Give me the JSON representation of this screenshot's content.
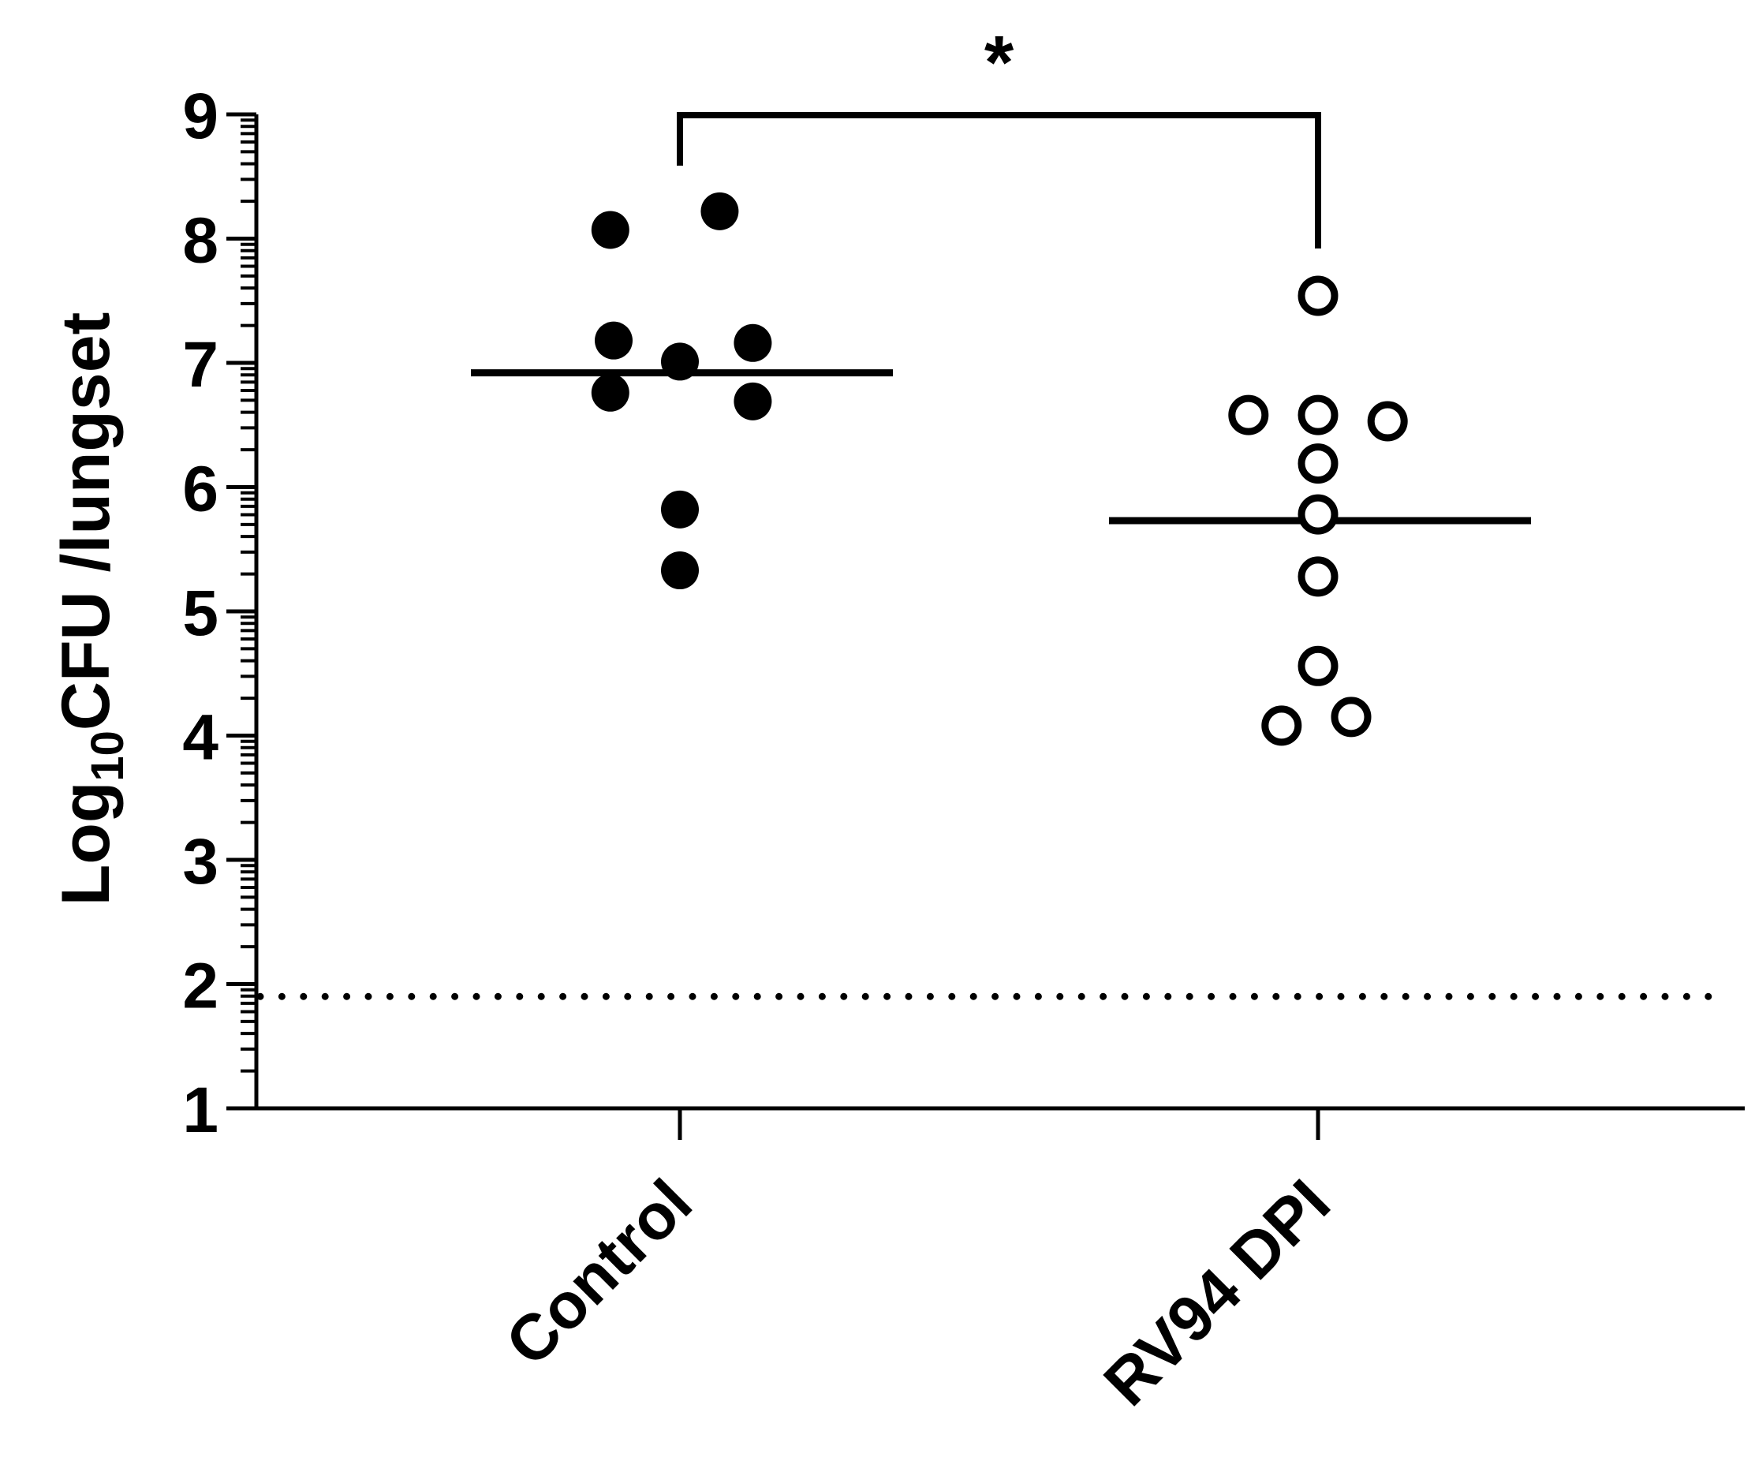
{
  "chart_data": {
    "type": "scatter",
    "title": "",
    "ylabel": {
      "prefix": "Log",
      "subscript": "10",
      "suffix": "CFU /lungset"
    },
    "ylim": [
      1,
      9
    ],
    "yticks": [
      "1",
      "2",
      "3",
      "4",
      "5",
      "6",
      "7",
      "8",
      "9"
    ],
    "categories": [
      "Control",
      "RV94 DPI"
    ],
    "series": [
      {
        "category": "Control",
        "marker": "filled-circle",
        "color": "#000000",
        "points": [
          {
            "offset": -0.105,
            "y": 8.07
          },
          {
            "offset": 0.06,
            "y": 8.22
          },
          {
            "offset": -0.1,
            "y": 7.18
          },
          {
            "offset": 0.11,
            "y": 7.16
          },
          {
            "offset": 0.0,
            "y": 7.01
          },
          {
            "offset": -0.105,
            "y": 6.76
          },
          {
            "offset": 0.11,
            "y": 6.69
          },
          {
            "offset": 0.0,
            "y": 5.82
          },
          {
            "offset": 0.0,
            "y": 5.33
          }
        ],
        "median": 6.92
      },
      {
        "category": "RV94 DPI",
        "marker": "open-circle",
        "color": "#000000",
        "points": [
          {
            "offset": 0.0,
            "y": 7.54
          },
          {
            "offset": -0.105,
            "y": 6.58
          },
          {
            "offset": 0.0,
            "y": 6.58
          },
          {
            "offset": 0.105,
            "y": 6.53
          },
          {
            "offset": 0.0,
            "y": 6.19
          },
          {
            "offset": 0.0,
            "y": 5.78
          },
          {
            "offset": 0.0,
            "y": 5.28
          },
          {
            "offset": 0.0,
            "y": 4.56
          },
          {
            "offset": -0.055,
            "y": 4.08
          },
          {
            "offset": 0.05,
            "y": 4.15
          }
        ],
        "median": 5.73
      }
    ],
    "reference_line": {
      "y": 1.9,
      "style": "dotted"
    },
    "significance": {
      "from": "Control",
      "to": "RV94 DPI",
      "label": "*"
    },
    "grid": false
  }
}
